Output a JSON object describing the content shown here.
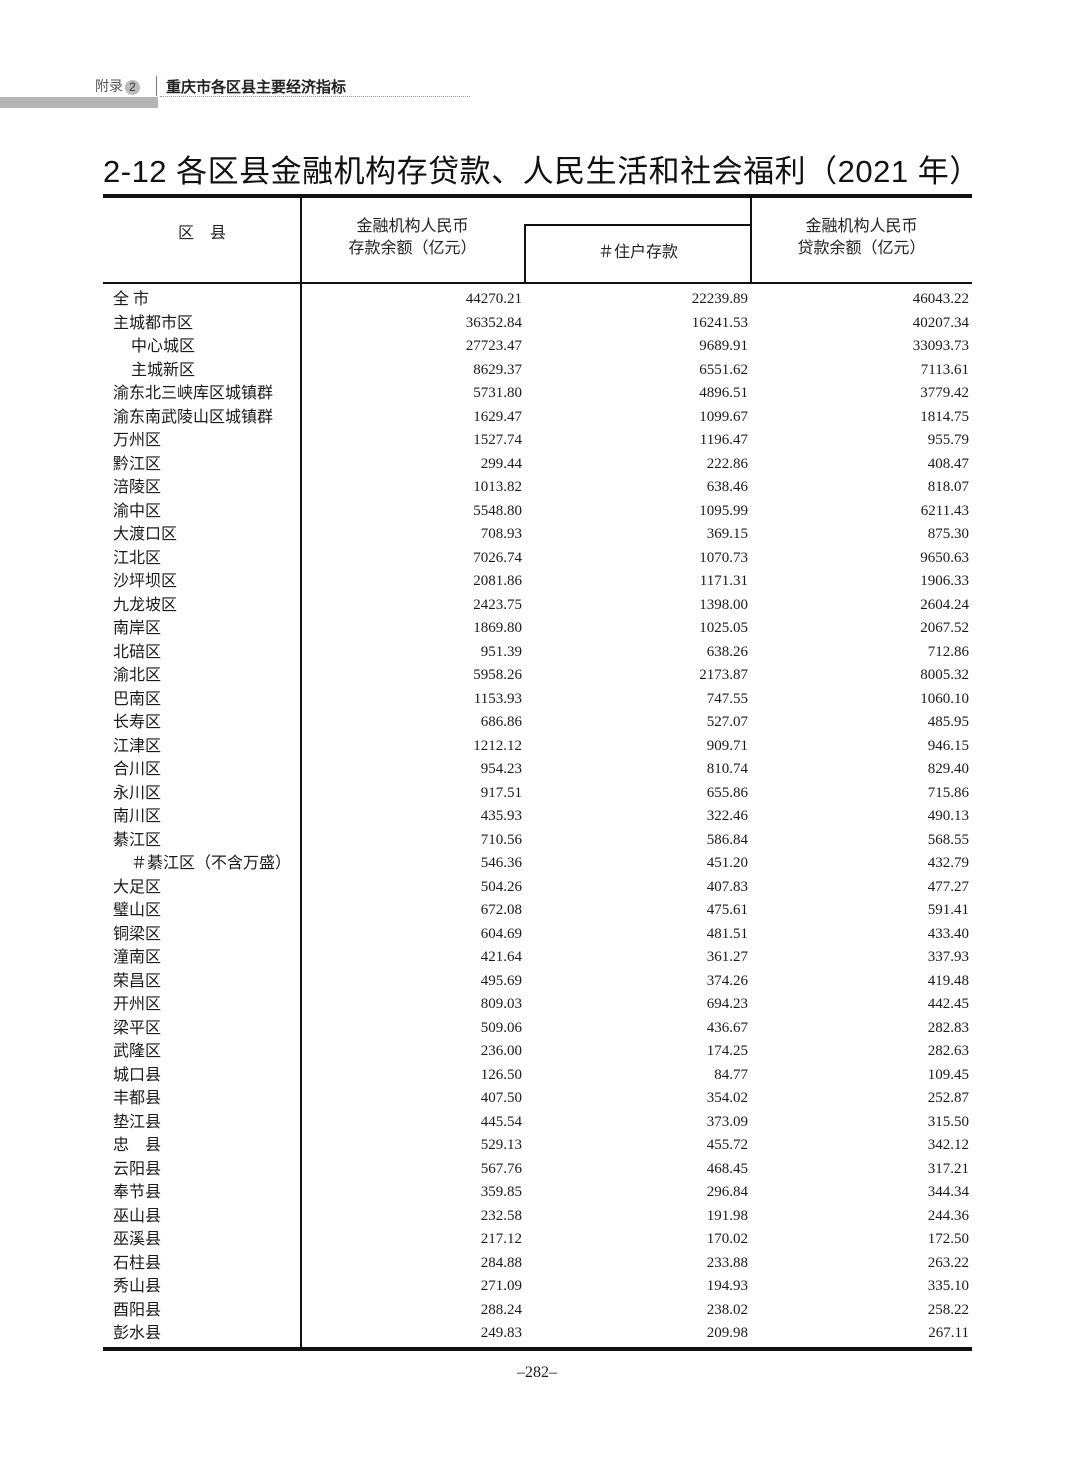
{
  "running_header": {
    "appendix_label": "附录",
    "appendix_num": "2",
    "section": "重庆市各区县主要经济指标"
  },
  "title": "2-12  各区县金融机构存贷款、人民生活和社会福利（2021 年）",
  "table": {
    "headers": {
      "district": "区　县",
      "deposit_line1": "金融机构人民币",
      "deposit_line2": "存款余额（亿元）",
      "household": "＃住户存款",
      "loan_line1": "金融机构人民币",
      "loan_line2": "贷款余额（亿元）"
    },
    "rows": [
      {
        "name": "全 市",
        "deposit": "44270.21",
        "household": "22239.89",
        "loan": "46043.22"
      },
      {
        "name": "主城都市区",
        "deposit": "36352.84",
        "household": "16241.53",
        "loan": "40207.34"
      },
      {
        "name": "中心城区",
        "deposit": "27723.47",
        "household": "9689.91",
        "loan": "33093.73",
        "sub": true
      },
      {
        "name": "主城新区",
        "deposit": "8629.37",
        "household": "6551.62",
        "loan": "7113.61",
        "sub": true
      },
      {
        "name": "渝东北三峡库区城镇群",
        "deposit": "5731.80",
        "household": "4896.51",
        "loan": "3779.42"
      },
      {
        "name": "渝东南武陵山区城镇群",
        "deposit": "1629.47",
        "household": "1099.67",
        "loan": "1814.75"
      },
      {
        "name": "万州区",
        "deposit": "1527.74",
        "household": "1196.47",
        "loan": "955.79"
      },
      {
        "name": "黔江区",
        "deposit": "299.44",
        "household": "222.86",
        "loan": "408.47"
      },
      {
        "name": "涪陵区",
        "deposit": "1013.82",
        "household": "638.46",
        "loan": "818.07"
      },
      {
        "name": "渝中区",
        "deposit": "5548.80",
        "household": "1095.99",
        "loan": "6211.43"
      },
      {
        "name": "大渡口区",
        "deposit": "708.93",
        "household": "369.15",
        "loan": "875.30"
      },
      {
        "name": "江北区",
        "deposit": "7026.74",
        "household": "1070.73",
        "loan": "9650.63"
      },
      {
        "name": "沙坪坝区",
        "deposit": "2081.86",
        "household": "1171.31",
        "loan": "1906.33"
      },
      {
        "name": "九龙坡区",
        "deposit": "2423.75",
        "household": "1398.00",
        "loan": "2604.24"
      },
      {
        "name": "南岸区",
        "deposit": "1869.80",
        "household": "1025.05",
        "loan": "2067.52"
      },
      {
        "name": "北碚区",
        "deposit": "951.39",
        "household": "638.26",
        "loan": "712.86"
      },
      {
        "name": "渝北区",
        "deposit": "5958.26",
        "household": "2173.87",
        "loan": "8005.32"
      },
      {
        "name": "巴南区",
        "deposit": "1153.93",
        "household": "747.55",
        "loan": "1060.10"
      },
      {
        "name": "长寿区",
        "deposit": "686.86",
        "household": "527.07",
        "loan": "485.95"
      },
      {
        "name": "江津区",
        "deposit": "1212.12",
        "household": "909.71",
        "loan": "946.15"
      },
      {
        "name": "合川区",
        "deposit": "954.23",
        "household": "810.74",
        "loan": "829.40"
      },
      {
        "name": "永川区",
        "deposit": "917.51",
        "household": "655.86",
        "loan": "715.86"
      },
      {
        "name": "南川区",
        "deposit": "435.93",
        "household": "322.46",
        "loan": "490.13"
      },
      {
        "name": "綦江区",
        "deposit": "710.56",
        "household": "586.84",
        "loan": "568.55"
      },
      {
        "name": "＃綦江区（不含万盛）",
        "deposit": "546.36",
        "household": "451.20",
        "loan": "432.79",
        "sub": true
      },
      {
        "name": "大足区",
        "deposit": "504.26",
        "household": "407.83",
        "loan": "477.27"
      },
      {
        "name": "璧山区",
        "deposit": "672.08",
        "household": "475.61",
        "loan": "591.41"
      },
      {
        "name": "铜梁区",
        "deposit": "604.69",
        "household": "481.51",
        "loan": "433.40"
      },
      {
        "name": "潼南区",
        "deposit": "421.64",
        "household": "361.27",
        "loan": "337.93"
      },
      {
        "name": "荣昌区",
        "deposit": "495.69",
        "household": "374.26",
        "loan": "419.48"
      },
      {
        "name": "开州区",
        "deposit": "809.03",
        "household": "694.23",
        "loan": "442.45"
      },
      {
        "name": "梁平区",
        "deposit": "509.06",
        "household": "436.67",
        "loan": "282.83"
      },
      {
        "name": "武隆区",
        "deposit": "236.00",
        "household": "174.25",
        "loan": "282.63"
      },
      {
        "name": "城口县",
        "deposit": "126.50",
        "household": "84.77",
        "loan": "109.45"
      },
      {
        "name": "丰都县",
        "deposit": "407.50",
        "household": "354.02",
        "loan": "252.87"
      },
      {
        "name": "垫江县",
        "deposit": "445.54",
        "household": "373.09",
        "loan": "315.50"
      },
      {
        "name": "忠　县",
        "deposit": "529.13",
        "household": "455.72",
        "loan": "342.12"
      },
      {
        "name": "云阳县",
        "deposit": "567.76",
        "household": "468.45",
        "loan": "317.21"
      },
      {
        "name": "奉节县",
        "deposit": "359.85",
        "household": "296.84",
        "loan": "344.34"
      },
      {
        "name": "巫山县",
        "deposit": "232.58",
        "household": "191.98",
        "loan": "244.36"
      },
      {
        "name": "巫溪县",
        "deposit": "217.12",
        "household": "170.02",
        "loan": "172.50"
      },
      {
        "name": "石柱县",
        "deposit": "284.88",
        "household": "233.88",
        "loan": "263.22"
      },
      {
        "name": "秀山县",
        "deposit": "271.09",
        "household": "194.93",
        "loan": "335.10"
      },
      {
        "name": "酉阳县",
        "deposit": "288.24",
        "household": "238.02",
        "loan": "258.22"
      },
      {
        "name": "彭水县",
        "deposit": "249.83",
        "household": "209.98",
        "loan": "267.11"
      }
    ]
  },
  "page_number": "–282–"
}
